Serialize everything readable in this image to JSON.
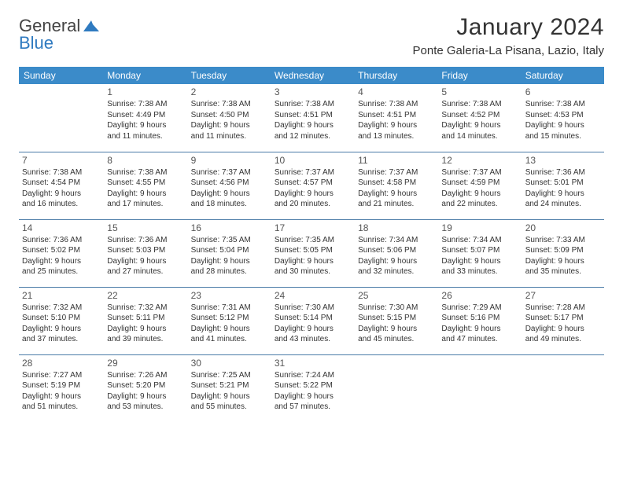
{
  "logo": {
    "textGeneral": "General",
    "textBlue": "Blue"
  },
  "title": "January 2024",
  "location": "Ponte Galeria-La Pisana, Lazio, Italy",
  "colors": {
    "header_bg": "#3b8bc9",
    "header_text": "#ffffff",
    "border": "#4a7ba7",
    "body_text": "#333333",
    "logo_blue": "#2f7ac0"
  },
  "weekdays": [
    "Sunday",
    "Monday",
    "Tuesday",
    "Wednesday",
    "Thursday",
    "Friday",
    "Saturday"
  ],
  "weeks": [
    [
      null,
      {
        "d": "1",
        "sr": "Sunrise: 7:38 AM",
        "ss": "Sunset: 4:49 PM",
        "dl1": "Daylight: 9 hours",
        "dl2": "and 11 minutes."
      },
      {
        "d": "2",
        "sr": "Sunrise: 7:38 AM",
        "ss": "Sunset: 4:50 PM",
        "dl1": "Daylight: 9 hours",
        "dl2": "and 11 minutes."
      },
      {
        "d": "3",
        "sr": "Sunrise: 7:38 AM",
        "ss": "Sunset: 4:51 PM",
        "dl1": "Daylight: 9 hours",
        "dl2": "and 12 minutes."
      },
      {
        "d": "4",
        "sr": "Sunrise: 7:38 AM",
        "ss": "Sunset: 4:51 PM",
        "dl1": "Daylight: 9 hours",
        "dl2": "and 13 minutes."
      },
      {
        "d": "5",
        "sr": "Sunrise: 7:38 AM",
        "ss": "Sunset: 4:52 PM",
        "dl1": "Daylight: 9 hours",
        "dl2": "and 14 minutes."
      },
      {
        "d": "6",
        "sr": "Sunrise: 7:38 AM",
        "ss": "Sunset: 4:53 PM",
        "dl1": "Daylight: 9 hours",
        "dl2": "and 15 minutes."
      }
    ],
    [
      {
        "d": "7",
        "sr": "Sunrise: 7:38 AM",
        "ss": "Sunset: 4:54 PM",
        "dl1": "Daylight: 9 hours",
        "dl2": "and 16 minutes."
      },
      {
        "d": "8",
        "sr": "Sunrise: 7:38 AM",
        "ss": "Sunset: 4:55 PM",
        "dl1": "Daylight: 9 hours",
        "dl2": "and 17 minutes."
      },
      {
        "d": "9",
        "sr": "Sunrise: 7:37 AM",
        "ss": "Sunset: 4:56 PM",
        "dl1": "Daylight: 9 hours",
        "dl2": "and 18 minutes."
      },
      {
        "d": "10",
        "sr": "Sunrise: 7:37 AM",
        "ss": "Sunset: 4:57 PM",
        "dl1": "Daylight: 9 hours",
        "dl2": "and 20 minutes."
      },
      {
        "d": "11",
        "sr": "Sunrise: 7:37 AM",
        "ss": "Sunset: 4:58 PM",
        "dl1": "Daylight: 9 hours",
        "dl2": "and 21 minutes."
      },
      {
        "d": "12",
        "sr": "Sunrise: 7:37 AM",
        "ss": "Sunset: 4:59 PM",
        "dl1": "Daylight: 9 hours",
        "dl2": "and 22 minutes."
      },
      {
        "d": "13",
        "sr": "Sunrise: 7:36 AM",
        "ss": "Sunset: 5:01 PM",
        "dl1": "Daylight: 9 hours",
        "dl2": "and 24 minutes."
      }
    ],
    [
      {
        "d": "14",
        "sr": "Sunrise: 7:36 AM",
        "ss": "Sunset: 5:02 PM",
        "dl1": "Daylight: 9 hours",
        "dl2": "and 25 minutes."
      },
      {
        "d": "15",
        "sr": "Sunrise: 7:36 AM",
        "ss": "Sunset: 5:03 PM",
        "dl1": "Daylight: 9 hours",
        "dl2": "and 27 minutes."
      },
      {
        "d": "16",
        "sr": "Sunrise: 7:35 AM",
        "ss": "Sunset: 5:04 PM",
        "dl1": "Daylight: 9 hours",
        "dl2": "and 28 minutes."
      },
      {
        "d": "17",
        "sr": "Sunrise: 7:35 AM",
        "ss": "Sunset: 5:05 PM",
        "dl1": "Daylight: 9 hours",
        "dl2": "and 30 minutes."
      },
      {
        "d": "18",
        "sr": "Sunrise: 7:34 AM",
        "ss": "Sunset: 5:06 PM",
        "dl1": "Daylight: 9 hours",
        "dl2": "and 32 minutes."
      },
      {
        "d": "19",
        "sr": "Sunrise: 7:34 AM",
        "ss": "Sunset: 5:07 PM",
        "dl1": "Daylight: 9 hours",
        "dl2": "and 33 minutes."
      },
      {
        "d": "20",
        "sr": "Sunrise: 7:33 AM",
        "ss": "Sunset: 5:09 PM",
        "dl1": "Daylight: 9 hours",
        "dl2": "and 35 minutes."
      }
    ],
    [
      {
        "d": "21",
        "sr": "Sunrise: 7:32 AM",
        "ss": "Sunset: 5:10 PM",
        "dl1": "Daylight: 9 hours",
        "dl2": "and 37 minutes."
      },
      {
        "d": "22",
        "sr": "Sunrise: 7:32 AM",
        "ss": "Sunset: 5:11 PM",
        "dl1": "Daylight: 9 hours",
        "dl2": "and 39 minutes."
      },
      {
        "d": "23",
        "sr": "Sunrise: 7:31 AM",
        "ss": "Sunset: 5:12 PM",
        "dl1": "Daylight: 9 hours",
        "dl2": "and 41 minutes."
      },
      {
        "d": "24",
        "sr": "Sunrise: 7:30 AM",
        "ss": "Sunset: 5:14 PM",
        "dl1": "Daylight: 9 hours",
        "dl2": "and 43 minutes."
      },
      {
        "d": "25",
        "sr": "Sunrise: 7:30 AM",
        "ss": "Sunset: 5:15 PM",
        "dl1": "Daylight: 9 hours",
        "dl2": "and 45 minutes."
      },
      {
        "d": "26",
        "sr": "Sunrise: 7:29 AM",
        "ss": "Sunset: 5:16 PM",
        "dl1": "Daylight: 9 hours",
        "dl2": "and 47 minutes."
      },
      {
        "d": "27",
        "sr": "Sunrise: 7:28 AM",
        "ss": "Sunset: 5:17 PM",
        "dl1": "Daylight: 9 hours",
        "dl2": "and 49 minutes."
      }
    ],
    [
      {
        "d": "28",
        "sr": "Sunrise: 7:27 AM",
        "ss": "Sunset: 5:19 PM",
        "dl1": "Daylight: 9 hours",
        "dl2": "and 51 minutes."
      },
      {
        "d": "29",
        "sr": "Sunrise: 7:26 AM",
        "ss": "Sunset: 5:20 PM",
        "dl1": "Daylight: 9 hours",
        "dl2": "and 53 minutes."
      },
      {
        "d": "30",
        "sr": "Sunrise: 7:25 AM",
        "ss": "Sunset: 5:21 PM",
        "dl1": "Daylight: 9 hours",
        "dl2": "and 55 minutes."
      },
      {
        "d": "31",
        "sr": "Sunrise: 7:24 AM",
        "ss": "Sunset: 5:22 PM",
        "dl1": "Daylight: 9 hours",
        "dl2": "and 57 minutes."
      },
      null,
      null,
      null
    ]
  ]
}
